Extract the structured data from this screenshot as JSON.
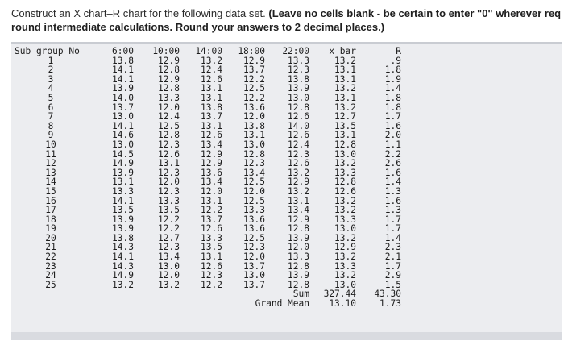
{
  "instructions": {
    "line1_plain": "Construct an X chart–R chart for the following data set. ",
    "line1_bold": "(Leave no cells blank - be certain to enter \"0\" wherever req",
    "line2_bold": "round intermediate calculations. Round your answers to 2 decimal places.)"
  },
  "table": {
    "headers": [
      "Sub group No",
      "6:00",
      "10:00",
      "14:00",
      "18:00",
      "22:00",
      "x bar",
      "R"
    ],
    "rows": [
      [
        "1",
        "13.8",
        "12.9",
        "13.2",
        "12.9",
        "13.3",
        "13.2",
        ".9"
      ],
      [
        "2",
        "14.1",
        "12.8",
        "12.4",
        "13.7",
        "12.3",
        "13.1",
        "1.8"
      ],
      [
        "3",
        "14.1",
        "12.9",
        "12.6",
        "12.2",
        "13.8",
        "13.1",
        "1.9"
      ],
      [
        "4",
        "13.9",
        "12.8",
        "13.1",
        "12.5",
        "13.9",
        "13.2",
        "1.4"
      ],
      [
        "5",
        "14.0",
        "13.3",
        "13.1",
        "12.2",
        "13.0",
        "13.1",
        "1.8"
      ],
      [
        "6",
        "13.7",
        "12.0",
        "13.8",
        "13.6",
        "12.8",
        "13.2",
        "1.8"
      ],
      [
        "7",
        "13.0",
        "12.4",
        "13.7",
        "12.0",
        "12.6",
        "12.7",
        "1.7"
      ],
      [
        "8",
        "14.1",
        "12.5",
        "13.1",
        "13.8",
        "14.0",
        "13.5",
        "1.6"
      ],
      [
        "9",
        "14.6",
        "12.8",
        "12.6",
        "13.1",
        "12.6",
        "13.1",
        "2.0"
      ],
      [
        "10",
        "13.0",
        "12.3",
        "13.4",
        "13.0",
        "12.4",
        "12.8",
        "1.1"
      ],
      [
        "11",
        "14.5",
        "12.6",
        "12.9",
        "12.8",
        "12.3",
        "13.0",
        "2.2"
      ],
      [
        "12",
        "14.9",
        "13.1",
        "12.9",
        "12.3",
        "12.6",
        "13.2",
        "2.6"
      ],
      [
        "13",
        "13.9",
        "12.3",
        "13.6",
        "13.4",
        "13.2",
        "13.3",
        "1.6"
      ],
      [
        "14",
        "13.1",
        "12.0",
        "13.4",
        "12.5",
        "12.9",
        "12.8",
        "1.4"
      ],
      [
        "15",
        "13.3",
        "12.3",
        "12.0",
        "12.0",
        "13.2",
        "12.6",
        "1.3"
      ],
      [
        "16",
        "14.1",
        "13.3",
        "13.1",
        "12.5",
        "13.1",
        "13.2",
        "1.6"
      ],
      [
        "17",
        "13.5",
        "13.5",
        "12.2",
        "13.3",
        "13.4",
        "13.2",
        "1.3"
      ],
      [
        "18",
        "13.9",
        "12.2",
        "13.7",
        "13.6",
        "12.9",
        "13.3",
        "1.7"
      ],
      [
        "19",
        "13.9",
        "12.2",
        "12.6",
        "13.6",
        "12.8",
        "13.0",
        "1.7"
      ],
      [
        "20",
        "13.8",
        "12.7",
        "13.3",
        "12.5",
        "13.9",
        "13.2",
        "1.4"
      ],
      [
        "21",
        "14.3",
        "12.3",
        "13.5",
        "12.3",
        "12.0",
        "12.9",
        "2.3"
      ],
      [
        "22",
        "14.1",
        "13.4",
        "13.1",
        "12.0",
        "13.3",
        "13.2",
        "2.1"
      ],
      [
        "23",
        "14.3",
        "13.0",
        "12.6",
        "13.7",
        "12.8",
        "13.3",
        "1.7"
      ],
      [
        "24",
        "14.9",
        "12.0",
        "12.3",
        "13.0",
        "13.9",
        "13.2",
        "2.9"
      ],
      [
        "25",
        "13.2",
        "13.2",
        "12.2",
        "13.7",
        "12.8",
        "13.0",
        "1.5"
      ]
    ],
    "sum": {
      "label": "Sum",
      "xbar": "327.44",
      "r": "43.30"
    },
    "grand_mean": {
      "label": "Grand Mean",
      "xbar": "13.10",
      "r": "1.73"
    }
  }
}
